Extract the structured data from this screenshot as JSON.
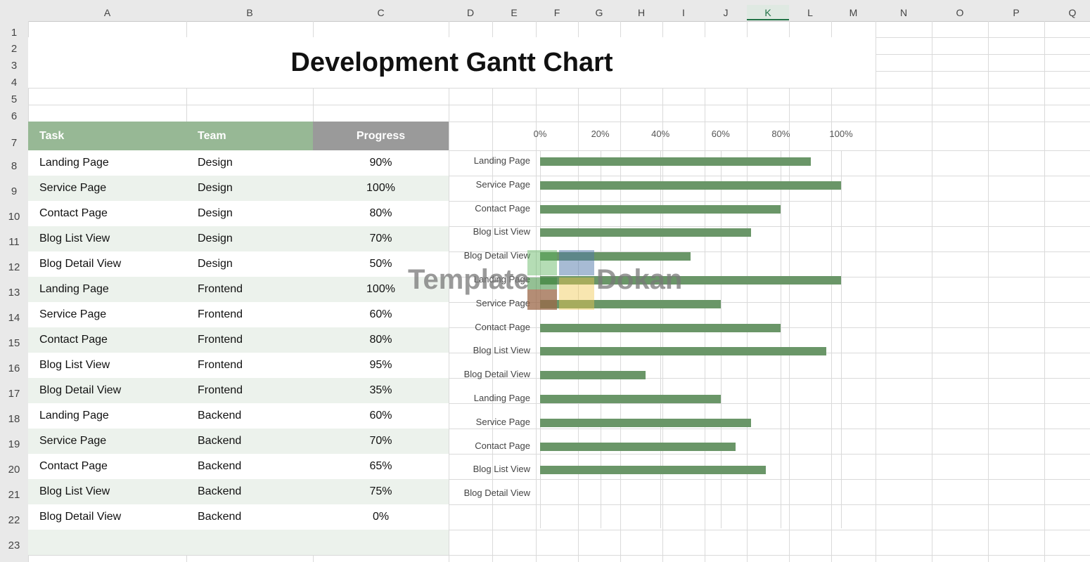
{
  "columns": [
    "A",
    "B",
    "C",
    "D",
    "E",
    "F",
    "G",
    "H",
    "I",
    "J",
    "K",
    "L",
    "M",
    "N",
    "O",
    "P",
    "Q"
  ],
  "rows": [
    "1",
    "2",
    "3",
    "4",
    "5",
    "6",
    "7",
    "8",
    "9",
    "10",
    "11",
    "12",
    "13",
    "14",
    "15",
    "16",
    "17",
    "18",
    "19",
    "20",
    "21",
    "22",
    "23"
  ],
  "active_column": "K",
  "title": "Development Gantt Chart",
  "table": {
    "headers": {
      "task": "Task",
      "team": "Team",
      "progress": "Progress"
    },
    "rows": [
      {
        "task": "Landing Page",
        "team": "Design",
        "progress": "90%"
      },
      {
        "task": "Service Page",
        "team": "Design",
        "progress": "100%"
      },
      {
        "task": "Contact Page",
        "team": "Design",
        "progress": "80%"
      },
      {
        "task": "Blog List View",
        "team": "Design",
        "progress": "70%"
      },
      {
        "task": "Blog Detail View",
        "team": "Design",
        "progress": "50%"
      },
      {
        "task": "Landing Page",
        "team": "Frontend",
        "progress": "100%"
      },
      {
        "task": "Service Page",
        "team": "Frontend",
        "progress": "60%"
      },
      {
        "task": "Contact Page",
        "team": "Frontend",
        "progress": "80%"
      },
      {
        "task": "Blog List View",
        "team": "Frontend",
        "progress": "95%"
      },
      {
        "task": "Blog Detail View",
        "team": "Frontend",
        "progress": "35%"
      },
      {
        "task": "Landing Page",
        "team": "Backend",
        "progress": "60%"
      },
      {
        "task": "Service Page",
        "team": "Backend",
        "progress": "70%"
      },
      {
        "task": "Contact Page",
        "team": "Backend",
        "progress": "65%"
      },
      {
        "task": "Blog List View",
        "team": "Backend",
        "progress": "75%"
      },
      {
        "task": "Blog Detail View",
        "team": "Backend",
        "progress": "0%"
      }
    ]
  },
  "colors": {
    "task_header": "#97b895",
    "progress_header": "#9a9a9a",
    "row_band": "#ecf2ec",
    "bar": "#6a9668"
  },
  "watermark": {
    "left": "Template",
    "right": "Dokan"
  },
  "chart_data": {
    "type": "bar",
    "orientation": "horizontal",
    "categories": [
      "Landing Page",
      "Service Page",
      "Contact Page",
      "Blog List View",
      "Blog Detail View",
      "Landing Page",
      "Service Page",
      "Contact Page",
      "Blog List View",
      "Blog Detail View",
      "Landing Page",
      "Service Page",
      "Contact Page",
      "Blog List View",
      "Blog Detail View"
    ],
    "values": [
      90,
      100,
      80,
      70,
      50,
      100,
      60,
      80,
      95,
      35,
      60,
      70,
      65,
      75,
      0
    ],
    "xlim": [
      0,
      100
    ],
    "ticks": [
      "0%",
      "20%",
      "40%",
      "60%",
      "80%",
      "100%"
    ],
    "tick_values": [
      0,
      20,
      40,
      60,
      80,
      100
    ],
    "axis_position": "top",
    "grid": true,
    "legend": "none"
  }
}
